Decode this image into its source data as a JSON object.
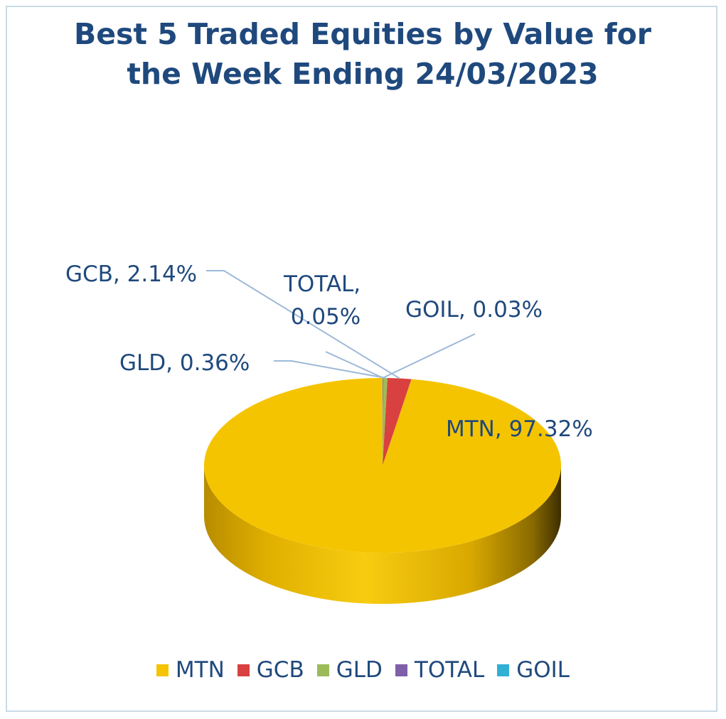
{
  "chart_data": {
    "type": "pie",
    "title_lines": [
      "Best 5 Traded Equities by Value for",
      "the Week Ending 24/03/2023"
    ],
    "categories": [
      "MTN",
      "GCB",
      "GLD",
      "TOTAL",
      "GOIL"
    ],
    "values": [
      97.32,
      2.14,
      0.36,
      0.05,
      0.03
    ],
    "data_labels": [
      "MTN, 97.32%",
      "GCB, 2.14%",
      "GLD, 0.36%",
      "TOTAL, 0.05%",
      "GOIL, 0.03%"
    ],
    "colors": [
      "#f5c400",
      "#d94040",
      "#9bbb59",
      "#7f5fa8",
      "#31b0d5"
    ],
    "legend_position": "bottom",
    "style": "3d"
  }
}
